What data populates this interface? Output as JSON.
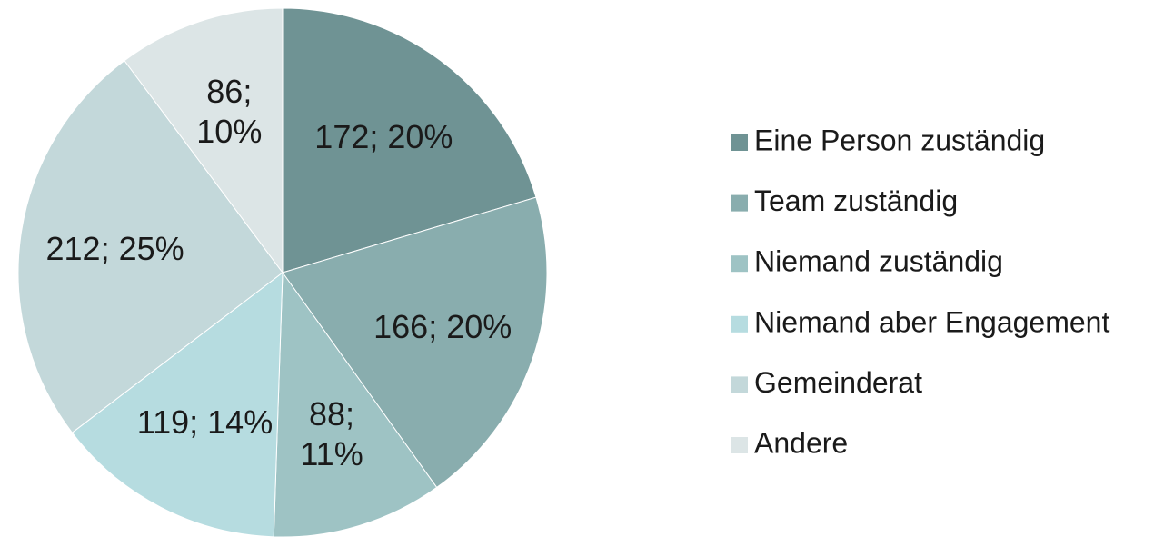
{
  "chart_data": {
    "type": "pie",
    "categories": [
      "Eine Person zuständig",
      "Team zuständig",
      "Niemand zuständig",
      "Niemand aber Engagement",
      "Gemeinderat",
      "Andere"
    ],
    "values": [
      172,
      166,
      88,
      119,
      212,
      86
    ],
    "value_labels": [
      "172; 20%",
      "166; 20%",
      "88; 11%",
      "119; 14%",
      "212; 25%",
      "86; 10%"
    ],
    "colors": [
      "#6f9394",
      "#89adae",
      "#9ec3c4",
      "#b6dce0",
      "#c3d8da",
      "#dce5e6"
    ],
    "legend": "right"
  }
}
